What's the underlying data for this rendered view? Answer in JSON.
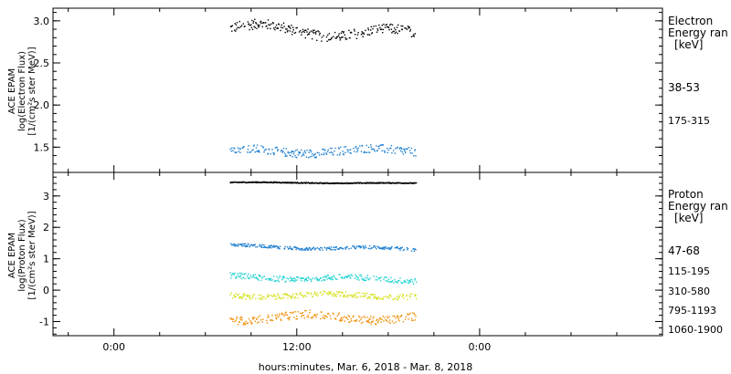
{
  "xaxis": {
    "label": "hours:minutes, Mar.  6, 2018 - Mar.  8, 2018",
    "ticks": [
      {
        "hour": 0,
        "label": "0:00"
      },
      {
        "hour": 12,
        "label": "12:00"
      },
      {
        "hour": 24,
        "label": "0:00"
      }
    ],
    "range_hours": [
      -4,
      36
    ]
  },
  "chart_data": [
    {
      "type": "scatter",
      "panel": "electron",
      "ylabel_lines": [
        "ACE EPAM",
        "log(Electron Flux)",
        "[1/(cm²s ster MeV)]"
      ],
      "ylim": [
        1.2,
        3.15
      ],
      "yticks": [
        "3.0",
        "2.5",
        "2.0",
        "1.5"
      ],
      "ytick_values": [
        3.0,
        2.5,
        2.0,
        1.5
      ],
      "legend_title_lines": [
        "Electron",
        "Energy ran",
        "[keV]"
      ],
      "x_hours_range": [
        7.6,
        19.8
      ],
      "series": [
        {
          "name": "38-53",
          "color": "#000000",
          "mean": 2.92,
          "amplitude": 0.06,
          "noise": 0.06,
          "trend": -0.08
        },
        {
          "name": "175-315",
          "color": "#1e7fd0",
          "mean": 1.46,
          "amplitude": 0.03,
          "noise": 0.05,
          "trend": 0.0
        }
      ]
    },
    {
      "type": "scatter",
      "panel": "proton",
      "ylabel_lines": [
        "ACE EPAM",
        "log(Proton Flux)",
        "[1/(cm²s ster MeV)]"
      ],
      "ylim": [
        -1.45,
        3.75
      ],
      "yticks": [
        "3",
        "2",
        "1",
        "0",
        "-1"
      ],
      "ytick_values": [
        3,
        2,
        1,
        0,
        -1
      ],
      "legend_title_lines": [
        "Proton",
        "Energy ran",
        "[keV]"
      ],
      "x_hours_range": [
        7.6,
        19.8
      ],
      "series": [
        {
          "name": "47-68",
          "color": "#000000",
          "mean": 3.45,
          "amplitude": 0.01,
          "noise": 0.015,
          "trend": -0.03
        },
        {
          "name": "115-195",
          "color": "#1e7fd0",
          "mean": 1.42,
          "amplitude": 0.04,
          "noise": 0.05,
          "trend": -0.1
        },
        {
          "name": "310-580",
          "color": "#22d3d3",
          "mean": 0.45,
          "amplitude": 0.05,
          "noise": 0.09,
          "trend": -0.1
        },
        {
          "name": "795-1193",
          "color": "#d6e01a",
          "mean": -0.15,
          "amplitude": 0.05,
          "noise": 0.09,
          "trend": 0.0
        },
        {
          "name": "1060-1900",
          "color": "#f08c00",
          "mean": -0.85,
          "amplitude": 0.1,
          "noise": 0.13,
          "trend": 0.0
        }
      ]
    }
  ]
}
